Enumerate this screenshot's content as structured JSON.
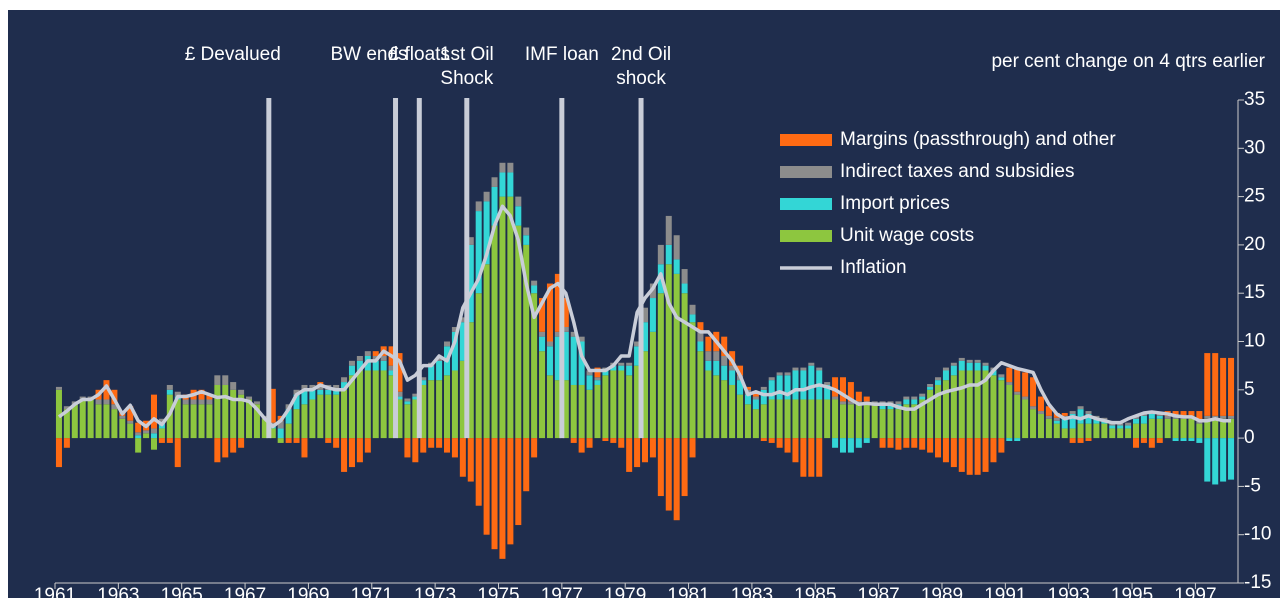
{
  "chart_data": {
    "type": "stacked-bar",
    "ylabel": "per cent change on 4 qtrs earlier",
    "ylim": [
      -15,
      35
    ],
    "yticks": [
      -15,
      -10,
      -5,
      0,
      5,
      10,
      15,
      20,
      25,
      30,
      35
    ],
    "categories": [
      "1961",
      null,
      null,
      null,
      null,
      null,
      null,
      null,
      "1963",
      null,
      null,
      null,
      null,
      null,
      null,
      null,
      "1965",
      null,
      null,
      null,
      null,
      null,
      null,
      null,
      "1967",
      null,
      null,
      null,
      null,
      null,
      null,
      null,
      "1969",
      null,
      null,
      null,
      null,
      null,
      null,
      null,
      "1971",
      null,
      null,
      null,
      null,
      null,
      null,
      null,
      "1973",
      null,
      null,
      null,
      null,
      null,
      null,
      null,
      "1975",
      null,
      null,
      null,
      null,
      null,
      null,
      null,
      "1977",
      null,
      null,
      null,
      null,
      null,
      null,
      null,
      "1979",
      null,
      null,
      null,
      null,
      null,
      null,
      null,
      "1981",
      null,
      null,
      null,
      null,
      null,
      null,
      null,
      "1983",
      null,
      null,
      null,
      null,
      null,
      null,
      null,
      "1985",
      null,
      null,
      null,
      null,
      null,
      null,
      null,
      "1987",
      null,
      null,
      null,
      null,
      null,
      null,
      null,
      "1989",
      null,
      null,
      null,
      null,
      null,
      null,
      null,
      "1991",
      null,
      null,
      null,
      null,
      null,
      null,
      null,
      "1993",
      null,
      null,
      null,
      null,
      null,
      null,
      null,
      "1995",
      null,
      null,
      null,
      null,
      null,
      null,
      null,
      "1997",
      null,
      null,
      null,
      null
    ],
    "series": [
      {
        "name": "Unit wage costs",
        "color": "#8dc63f",
        "values": [
          5.0,
          3.0,
          3.5,
          4.0,
          4.0,
          3.5,
          3.5,
          3.0,
          2.0,
          1.5,
          -1.5,
          0.5,
          -1.2,
          1.0,
          4.5,
          4.0,
          3.5,
          3.5,
          3.5,
          3.5,
          5.5,
          5.5,
          5.0,
          4.5,
          4.0,
          3.5,
          2.0,
          1.0,
          -0.5,
          1.5,
          3.0,
          3.5,
          4.0,
          4.5,
          4.5,
          4.5,
          5.0,
          6.5,
          7.0,
          7.0,
          7.0,
          7.0,
          6.5,
          4.0,
          3.5,
          4.0,
          5.5,
          6.0,
          6.0,
          6.5,
          7.0,
          8.0,
          12.0,
          15.0,
          18.0,
          22.0,
          25.0,
          25.0,
          22.0,
          20.0,
          15.0,
          9.0,
          6.5,
          6.0,
          6.0,
          5.5,
          5.5,
          5.0,
          5.5,
          6.5,
          7.0,
          7.0,
          6.5,
          7.5,
          9.0,
          11.0,
          15.0,
          18.0,
          17.0,
          15.0,
          12.0,
          9.0,
          7.0,
          6.5,
          6.0,
          5.5,
          4.5,
          3.5,
          3.0,
          3.5,
          4.0,
          4.0,
          4.0,
          4.0,
          4.0,
          4.0,
          4.0,
          4.0,
          4.0,
          3.5,
          3.5,
          3.5,
          3.5,
          3.5,
          3.0,
          3.0,
          3.0,
          3.5,
          3.5,
          4.0,
          5.0,
          5.5,
          6.0,
          6.5,
          7.0,
          7.0,
          7.0,
          7.0,
          6.5,
          6.0,
          5.5,
          4.5,
          4.0,
          3.0,
          2.5,
          2.0,
          1.5,
          1.0,
          1.0,
          1.5,
          1.5,
          1.5,
          1.5,
          1.0,
          1.0,
          1.0,
          1.5,
          1.5,
          2.0,
          2.0,
          2.0,
          2.0,
          2.0,
          2.0,
          1.5,
          2.0,
          2.0,
          2.0,
          2.0
        ]
      },
      {
        "name": "Import prices",
        "color": "#33d6d6",
        "values": [
          0,
          0,
          0,
          0,
          0,
          0,
          0,
          0,
          0,
          0,
          0.3,
          0,
          0.5,
          0.5,
          0.5,
          0.3,
          0,
          0,
          0,
          0,
          0,
          0,
          0,
          0,
          0,
          0,
          0,
          0.3,
          1.0,
          1.5,
          1.5,
          1.5,
          1.0,
          0.5,
          0.5,
          0.5,
          0.8,
          1.0,
          1.0,
          1.5,
          1.0,
          1.0,
          0.5,
          0.3,
          0.3,
          0.3,
          0.5,
          1.5,
          2.0,
          3.0,
          4.0,
          4.0,
          8.0,
          8.5,
          6.5,
          4.0,
          2.5,
          2.5,
          2.0,
          1.0,
          0.8,
          1.5,
          3.0,
          4.5,
          5.0,
          5.0,
          4.5,
          1.5,
          0.5,
          0.5,
          0.5,
          0.5,
          1.0,
          2.0,
          3.0,
          3.5,
          3.0,
          2.0,
          1.5,
          1.0,
          0.8,
          1.0,
          1.0,
          1.5,
          1.5,
          1.5,
          1.5,
          1.0,
          1.0,
          1.5,
          2.0,
          2.5,
          2.5,
          3.0,
          3.0,
          3.5,
          3.0,
          1.5,
          -1.0,
          -1.5,
          -1.5,
          -1.0,
          -0.5,
          0,
          0.5,
          0.5,
          0.5,
          0.5,
          0.5,
          0.3,
          0.3,
          0.5,
          1.0,
          1.0,
          1.0,
          0.8,
          0.8,
          0.5,
          0.5,
          0.3,
          -0.3,
          -0.3,
          0,
          0,
          0,
          0,
          0.3,
          1.0,
          1.5,
          1.5,
          1.0,
          0.5,
          0.3,
          0.3,
          0.3,
          0.3,
          0.5,
          0.8,
          0.5,
          0.3,
          0,
          -0.3,
          -0.3,
          -0.3,
          -0.5,
          -4.5,
          -4.8,
          -4.5,
          -4.3
        ]
      },
      {
        "name": "Indirect taxes and subsidies",
        "color": "#8c8c8c",
        "values": [
          0.3,
          0.3,
          0.3,
          0.3,
          0.3,
          0.5,
          0.5,
          0.5,
          0.3,
          0.3,
          0.3,
          0.3,
          0.5,
          0.5,
          0.5,
          0.5,
          0.5,
          0.5,
          0.5,
          0.5,
          1.0,
          1.0,
          0.8,
          0.5,
          0.3,
          0.3,
          0.3,
          0.3,
          0.8,
          0.5,
          0.5,
          0.5,
          0.5,
          0.5,
          0.5,
          0.5,
          0.5,
          0.5,
          0.5,
          0.5,
          0.5,
          0.5,
          0.5,
          0.5,
          0.3,
          0.3,
          0.3,
          0.3,
          0.3,
          0.5,
          0.5,
          0.5,
          0.8,
          1.0,
          1.0,
          1.0,
          1.0,
          1.0,
          1.0,
          0.8,
          0.5,
          0.5,
          0.5,
          0.5,
          0.5,
          0.5,
          0.5,
          0.5,
          0.3,
          0.3,
          0.3,
          0.3,
          0.3,
          0.5,
          1.5,
          1.5,
          2.0,
          3.0,
          2.5,
          1.5,
          1.0,
          1.0,
          1.0,
          1.0,
          1.0,
          0.5,
          0.5,
          0.5,
          0.3,
          0.3,
          0.3,
          0.3,
          0.3,
          0.3,
          0.3,
          0.3,
          0.3,
          0.3,
          0.3,
          0.3,
          0.3,
          0.3,
          0.3,
          0.3,
          0.3,
          0.3,
          0.3,
          0.3,
          0.3,
          0.3,
          0.3,
          0.3,
          0.3,
          0.3,
          0.3,
          0.3,
          0.3,
          0.3,
          0.3,
          0.3,
          0.3,
          0.3,
          0.3,
          0.3,
          0.3,
          0.3,
          0.3,
          0.3,
          0.3,
          0.3,
          0.3,
          0.3,
          0.3,
          0.3,
          0.3,
          0.3,
          0.3,
          0.3,
          0.3,
          0.3,
          0.3,
          0.3,
          0.3,
          0.3,
          0.3,
          0.3,
          0.3,
          0.3,
          0.3
        ]
      },
      {
        "name": "Margins (passthrough) and other",
        "color": "#ff6a13",
        "values": [
          -3.0,
          -1.0,
          0,
          0,
          0,
          1.0,
          2.0,
          1.5,
          0.5,
          1.5,
          1.0,
          1.0,
          3.5,
          -0.5,
          -0.5,
          -3.0,
          0.5,
          1.0,
          1.0,
          0.5,
          -2.5,
          -2.0,
          -1.5,
          -1.0,
          0,
          0,
          0,
          3.5,
          0.5,
          -0.5,
          -0.5,
          -2.0,
          0,
          0.3,
          -0.5,
          -1.0,
          -3.5,
          -3.0,
          -2.5,
          -1.5,
          0.5,
          1.0,
          2.0,
          4.0,
          -2.0,
          -2.5,
          -1.5,
          -1.0,
          -1.0,
          -1.5,
          -2.0,
          -4.0,
          -4.5,
          -7.0,
          -10.0,
          -11.5,
          -12.5,
          -11.0,
          -9.0,
          -5.5,
          -2.0,
          3.5,
          6.0,
          6.0,
          3.0,
          -0.5,
          -1.5,
          -1.0,
          1.0,
          -0.3,
          -0.5,
          -1.0,
          -3.5,
          -3.0,
          -2.5,
          -2.0,
          -6.0,
          -7.5,
          -8.5,
          -6.0,
          -2.0,
          1.0,
          1.5,
          2.0,
          2.0,
          1.5,
          1.0,
          0.3,
          0.5,
          -0.3,
          -0.5,
          -1.0,
          -1.5,
          -2.5,
          -4.0,
          -4.0,
          -4.0,
          0,
          2.0,
          2.5,
          2.0,
          1.0,
          0.5,
          0,
          -1.0,
          -1.0,
          -1.2,
          -1.0,
          -1.0,
          -1.2,
          -1.5,
          -2.0,
          -2.5,
          -3.0,
          -3.5,
          -3.8,
          -3.8,
          -3.5,
          -2.5,
          -1.5,
          1.5,
          2.5,
          2.5,
          3.0,
          1.5,
          1.0,
          0.5,
          0.3,
          -0.5,
          -0.5,
          -0.3,
          0,
          0,
          0,
          0,
          0,
          -1.0,
          -0.5,
          -1.0,
          -0.5,
          0.5,
          0.5,
          0.5,
          0.5,
          1.0,
          6.5,
          6.5,
          6.0,
          6.0
        ]
      }
    ],
    "line": {
      "name": "Inflation",
      "color": "#c9cdd8",
      "values": [
        2.2,
        2.8,
        3.5,
        4.0,
        4.0,
        4.5,
        5.4,
        4.0,
        2.5,
        3.4,
        1.8,
        1.2,
        2.0,
        1.4,
        2.5,
        4.3,
        4.3,
        4.5,
        4.8,
        4.5,
        4.2,
        4.3,
        4.0,
        4.0,
        3.8,
        3.0,
        2.0,
        1.2,
        1.8,
        3.0,
        4.5,
        5.0,
        5.0,
        5.5,
        5.2,
        5.0,
        5.0,
        6.0,
        7.0,
        8.0,
        8.0,
        9.0,
        8.5,
        8.0,
        6.0,
        6.5,
        7.5,
        7.5,
        8.5,
        8.0,
        10.0,
        13.5,
        15.0,
        16.5,
        19.0,
        22.0,
        24.0,
        23.0,
        20.5,
        16.0,
        12.5,
        14.0,
        15.5,
        16.0,
        15.0,
        12.0,
        8.5,
        7.0,
        7.0,
        7.0,
        7.5,
        8.5,
        8.5,
        13.0,
        14.5,
        15.5,
        17.0,
        14.0,
        12.5,
        12.0,
        11.5,
        11.0,
        11.0,
        10.0,
        9.0,
        8.0,
        6.5,
        4.5,
        4.8,
        4.5,
        4.5,
        4.8,
        4.5,
        5.0,
        5.0,
        5.3,
        5.5,
        5.3,
        5.0,
        4.5,
        4.0,
        3.5,
        3.6,
        3.5,
        3.5,
        3.5,
        3.2,
        3.0,
        3.0,
        3.5,
        4.0,
        4.5,
        4.8,
        5.0,
        5.2,
        5.5,
        5.5,
        6.0,
        7.0,
        7.8,
        7.5,
        7.2,
        7.0,
        6.8,
        5.0,
        3.5,
        2.5,
        2.0,
        2.2,
        2.0,
        2.3,
        2.0,
        1.8,
        1.6,
        1.6,
        2.0,
        2.3,
        2.6,
        2.7,
        2.6,
        2.5,
        2.3,
        2.2,
        2.2,
        1.8,
        1.8,
        2.0,
        1.8,
        1.8
      ]
    },
    "annotations": [
      {
        "lines": [
          "£ Devalued"
        ],
        "x": 1967.75
      },
      {
        "lines": [
          "BW ends"
        ],
        "x": 1971.75
      },
      {
        "lines": [
          "£ floats"
        ],
        "x": 1972.5
      },
      {
        "lines": [
          "1st Oil",
          "Shock"
        ],
        "x": 1974
      },
      {
        "lines": [
          "IMF loan"
        ],
        "x": 1977
      },
      {
        "lines": [
          "2nd Oil",
          "shock"
        ],
        "x": 1979.5
      }
    ],
    "x_start": 1961,
    "legend": "upper-right"
  }
}
